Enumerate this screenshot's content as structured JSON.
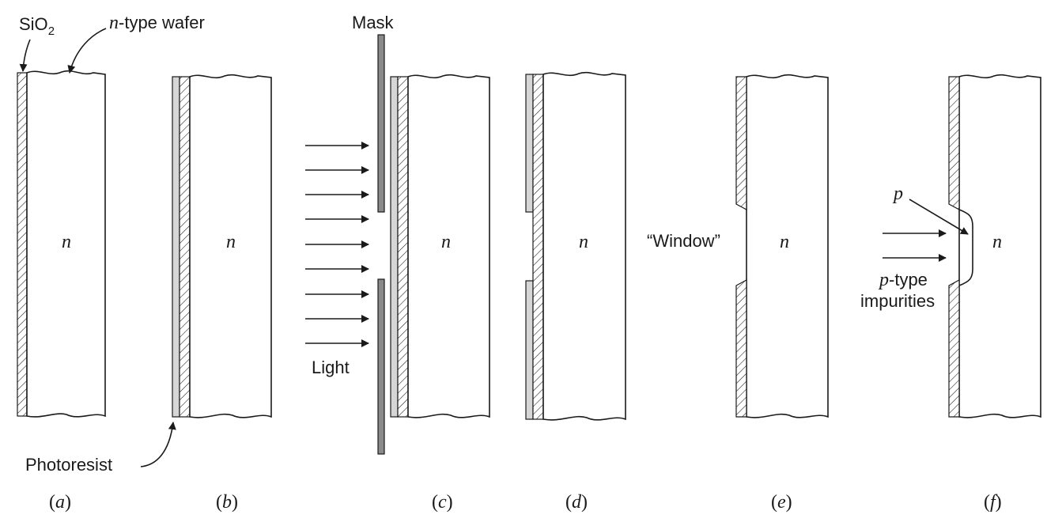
{
  "labels": {
    "sio2_prefix": "SiO",
    "sio2_sub": "2",
    "ntype_italic": "n",
    "ntype_rest": "-type wafer",
    "photoresist": "Photoresist",
    "mask": "Mask",
    "light": "Light",
    "window": "“Window”",
    "p_label": "p",
    "ptype_italic": "p",
    "ptype_rest": "-type",
    "impurities": "impurities",
    "n_region": "n"
  },
  "panels": [
    {
      "label_open": "(",
      "label_letter": "a",
      "label_close": ")"
    },
    {
      "label_open": "(",
      "label_letter": "b",
      "label_close": ")"
    },
    {
      "label_open": "(",
      "label_letter": "c",
      "label_close": ")"
    },
    {
      "label_open": "(",
      "label_letter": "d",
      "label_close": ")"
    },
    {
      "label_open": "(",
      "label_letter": "e",
      "label_close": ")"
    },
    {
      "label_open": "(",
      "label_letter": "f",
      "label_close": ")"
    }
  ],
  "colors": {
    "ink": "#1a1a1a",
    "photoresist": "#d6d6d6",
    "mask": "#8a8a8a"
  }
}
